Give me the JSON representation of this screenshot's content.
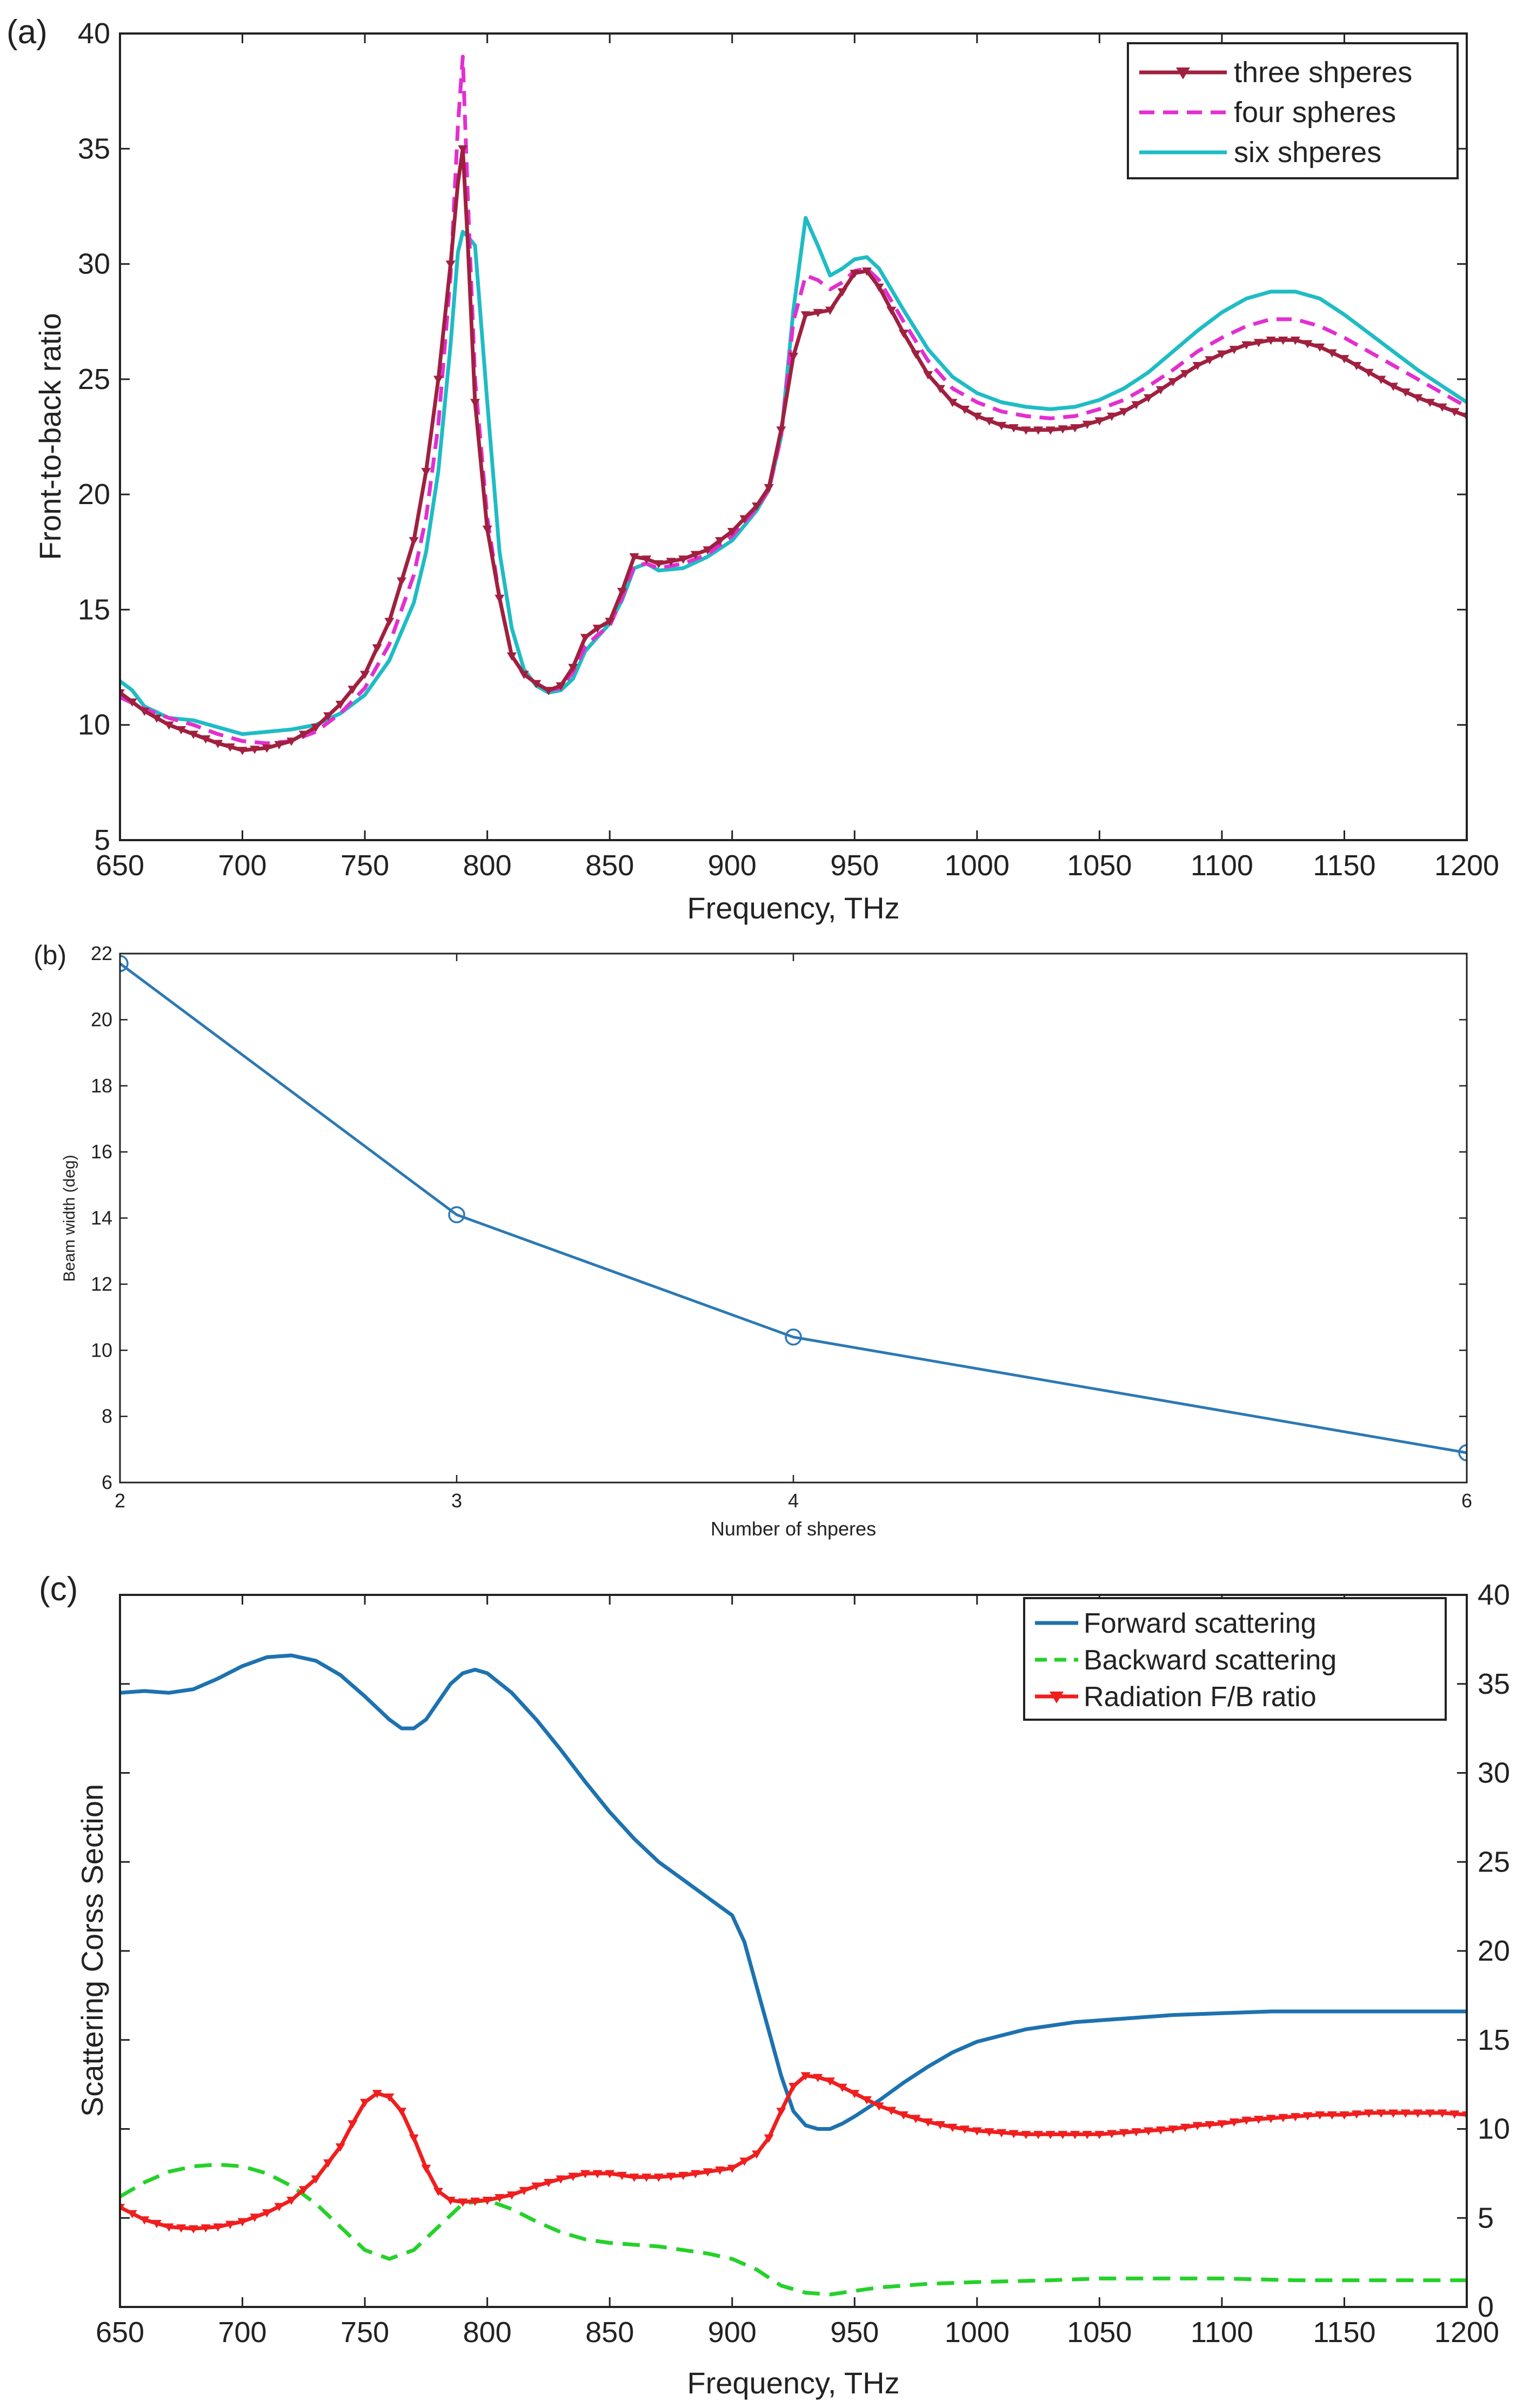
{
  "colors": {
    "three": "#a0203f",
    "four": "#e22fd0",
    "six": "#1fbcc4",
    "forward": "#1d72b0",
    "backward": "#25d12a",
    "ratio": "#f01e1e",
    "beam": "#2c79b4"
  },
  "chart_data": [
    {
      "panel": "(a)",
      "type": "line",
      "title": "",
      "xlabel": "Frequency, THz",
      "ylabel": "Front-to-back ratio",
      "xlim": [
        650,
        1200
      ],
      "ylim": [
        5,
        40
      ],
      "xticks": [
        650,
        700,
        750,
        800,
        850,
        900,
        950,
        1000,
        1050,
        1100,
        1150,
        1200
      ],
      "yticks": [
        5,
        10,
        15,
        20,
        25,
        30,
        35,
        40
      ],
      "legend_position": "top-right",
      "series": [
        {
          "name": "three shperes",
          "style": "solid-triangle-markers",
          "x": [
            650,
            660,
            670,
            680,
            690,
            700,
            710,
            720,
            730,
            740,
            750,
            760,
            770,
            775,
            780,
            785,
            788,
            790,
            792,
            795,
            800,
            805,
            810,
            815,
            820,
            825,
            830,
            835,
            840,
            845,
            850,
            855,
            860,
            865,
            870,
            880,
            890,
            900,
            910,
            915,
            920,
            925,
            930,
            935,
            940,
            945,
            950,
            955,
            960,
            970,
            980,
            990,
            1000,
            1010,
            1020,
            1030,
            1040,
            1050,
            1060,
            1070,
            1080,
            1090,
            1100,
            1110,
            1120,
            1130,
            1140,
            1150,
            1160,
            1170,
            1180,
            1190,
            1200
          ],
          "y": [
            11.4,
            10.6,
            10.0,
            9.6,
            9.2,
            8.9,
            9.0,
            9.3,
            9.9,
            10.9,
            12.2,
            14.5,
            18.0,
            21.0,
            25.0,
            30.0,
            33.5,
            35.0,
            31.0,
            24.0,
            18.5,
            15.5,
            13.0,
            12.2,
            11.8,
            11.5,
            11.7,
            12.5,
            13.8,
            14.2,
            14.5,
            15.8,
            17.3,
            17.2,
            17.0,
            17.2,
            17.6,
            18.4,
            19.5,
            20.3,
            22.8,
            26.0,
            27.8,
            27.9,
            28.0,
            28.8,
            29.6,
            29.7,
            29.0,
            27.0,
            25.2,
            24.0,
            23.4,
            23.0,
            22.8,
            22.8,
            22.9,
            23.2,
            23.6,
            24.2,
            24.9,
            25.6,
            26.1,
            26.5,
            26.7,
            26.7,
            26.4,
            25.9,
            25.3,
            24.7,
            24.2,
            23.8,
            23.4
          ]
        },
        {
          "name": "four spheres",
          "style": "dashed",
          "x": [
            650,
            660,
            670,
            680,
            690,
            700,
            710,
            720,
            730,
            740,
            750,
            760,
            770,
            775,
            780,
            785,
            788,
            790,
            792,
            795,
            800,
            805,
            810,
            815,
            820,
            825,
            830,
            835,
            840,
            845,
            850,
            855,
            860,
            865,
            870,
            880,
            890,
            900,
            910,
            915,
            920,
            925,
            930,
            935,
            940,
            945,
            950,
            955,
            960,
            970,
            980,
            990,
            1000,
            1010,
            1020,
            1030,
            1040,
            1050,
            1060,
            1070,
            1080,
            1090,
            1100,
            1110,
            1120,
            1130,
            1140,
            1150,
            1160,
            1170,
            1180,
            1190,
            1200
          ],
          "y": [
            11.2,
            10.7,
            10.3,
            10.0,
            9.6,
            9.3,
            9.2,
            9.3,
            9.7,
            10.5,
            11.6,
            13.5,
            16.5,
            19.0,
            23.0,
            29.5,
            36.0,
            39.0,
            33.0,
            25.0,
            19.0,
            15.5,
            13.0,
            12.2,
            11.8,
            11.5,
            11.6,
            12.3,
            13.4,
            13.9,
            14.3,
            15.5,
            16.9,
            17.0,
            16.8,
            17.0,
            17.4,
            18.2,
            19.4,
            20.2,
            22.5,
            27.5,
            29.5,
            29.3,
            28.9,
            29.2,
            29.7,
            29.8,
            29.3,
            27.5,
            25.8,
            24.6,
            24.0,
            23.6,
            23.4,
            23.3,
            23.4,
            23.7,
            24.1,
            24.7,
            25.4,
            26.2,
            26.8,
            27.3,
            27.6,
            27.6,
            27.3,
            26.8,
            26.2,
            25.6,
            25.0,
            24.4,
            23.8
          ]
        },
        {
          "name": "six shperes",
          "style": "solid",
          "x": [
            650,
            655,
            660,
            670,
            680,
            690,
            700,
            710,
            720,
            730,
            740,
            750,
            760,
            770,
            775,
            780,
            785,
            788,
            790,
            792,
            795,
            800,
            805,
            810,
            815,
            820,
            825,
            830,
            835,
            840,
            845,
            850,
            855,
            860,
            865,
            870,
            880,
            890,
            900,
            910,
            915,
            920,
            925,
            930,
            935,
            940,
            945,
            950,
            955,
            960,
            970,
            980,
            990,
            1000,
            1010,
            1020,
            1030,
            1040,
            1050,
            1060,
            1070,
            1080,
            1090,
            1100,
            1110,
            1120,
            1130,
            1140,
            1150,
            1160,
            1170,
            1180,
            1190,
            1200
          ],
          "y": [
            11.9,
            11.5,
            10.8,
            10.3,
            10.2,
            9.9,
            9.6,
            9.7,
            9.8,
            10.0,
            10.5,
            11.3,
            12.8,
            15.3,
            17.5,
            21.0,
            26.5,
            30.5,
            31.4,
            31.2,
            30.8,
            24.0,
            17.5,
            14.2,
            12.4,
            11.7,
            11.4,
            11.5,
            12.0,
            13.2,
            13.8,
            14.4,
            15.4,
            16.8,
            17.0,
            16.7,
            16.8,
            17.3,
            18.0,
            19.3,
            20.2,
            22.5,
            28.0,
            32.0,
            30.8,
            29.5,
            29.8,
            30.2,
            30.3,
            29.8,
            28.0,
            26.3,
            25.1,
            24.4,
            24.0,
            23.8,
            23.7,
            23.8,
            24.1,
            24.6,
            25.3,
            26.2,
            27.1,
            27.9,
            28.5,
            28.8,
            28.8,
            28.5,
            27.8,
            27.0,
            26.2,
            25.4,
            24.7,
            24.0
          ]
        }
      ]
    },
    {
      "panel": "(b)",
      "type": "line",
      "title": "",
      "xlabel": "Number of shperes",
      "ylabel": "Beam width (deg)",
      "xlim": [
        2,
        6
      ],
      "ylim": [
        6,
        22
      ],
      "xticks": [
        2,
        3,
        4,
        6
      ],
      "yticks": [
        6,
        8,
        10,
        12,
        14,
        16,
        18,
        20,
        22
      ],
      "series": [
        {
          "name": "beam width",
          "style": "solid-circle-markers",
          "x": [
            2,
            3,
            4,
            6
          ],
          "y": [
            21.7,
            14.1,
            10.4,
            6.9
          ]
        }
      ]
    },
    {
      "panel": "(c)",
      "type": "line",
      "title": "",
      "xlabel": "Frequency, THz",
      "ylabel": "Scattering Corss Section",
      "xlim": [
        650,
        1200
      ],
      "y2lim": [
        0,
        40
      ],
      "xticks": [
        650,
        700,
        750,
        800,
        850,
        900,
        950,
        1000,
        1050,
        1100,
        1150,
        1200
      ],
      "y2ticks": [
        0,
        5,
        10,
        15,
        20,
        25,
        30,
        35,
        40
      ],
      "legend_position": "top-right",
      "series": [
        {
          "name": "Forward scattering",
          "style": "solid",
          "x": [
            650,
            660,
            670,
            680,
            690,
            700,
            710,
            720,
            730,
            740,
            750,
            760,
            765,
            770,
            775,
            780,
            785,
            790,
            795,
            800,
            810,
            820,
            830,
            840,
            850,
            860,
            870,
            880,
            890,
            900,
            905,
            910,
            915,
            920,
            925,
            930,
            935,
            940,
            945,
            950,
            960,
            970,
            980,
            990,
            1000,
            1020,
            1040,
            1060,
            1080,
            1100,
            1120,
            1140,
            1160,
            1180,
            1200
          ],
          "y": [
            34.5,
            34.6,
            34.5,
            34.7,
            35.3,
            36.0,
            36.5,
            36.6,
            36.3,
            35.5,
            34.3,
            33.0,
            32.5,
            32.5,
            33.0,
            34.0,
            35.0,
            35.6,
            35.8,
            35.6,
            34.5,
            33.0,
            31.3,
            29.5,
            27.8,
            26.3,
            25.0,
            24.0,
            23.0,
            22.0,
            20.5,
            18.0,
            15.5,
            13.0,
            11.0,
            10.2,
            10.0,
            10.0,
            10.3,
            10.7,
            11.6,
            12.6,
            13.5,
            14.3,
            14.9,
            15.6,
            16.0,
            16.2,
            16.4,
            16.5,
            16.6,
            16.6,
            16.6,
            16.6,
            16.6
          ]
        },
        {
          "name": "Backward scattering",
          "style": "dashed",
          "x": [
            650,
            660,
            670,
            680,
            690,
            700,
            710,
            720,
            730,
            740,
            750,
            760,
            770,
            780,
            790,
            800,
            810,
            820,
            830,
            840,
            850,
            860,
            870,
            880,
            890,
            900,
            910,
            920,
            930,
            940,
            950,
            960,
            980,
            1000,
            1030,
            1050,
            1080,
            1100,
            1130,
            1160,
            1200
          ],
          "y": [
            6.2,
            7.0,
            7.6,
            7.9,
            8.0,
            7.9,
            7.5,
            6.8,
            5.8,
            4.5,
            3.2,
            2.7,
            3.2,
            4.5,
            5.8,
            6.0,
            5.5,
            4.8,
            4.2,
            3.8,
            3.6,
            3.5,
            3.4,
            3.2,
            3.0,
            2.7,
            2.1,
            1.2,
            0.8,
            0.7,
            0.9,
            1.1,
            1.3,
            1.4,
            1.5,
            1.6,
            1.6,
            1.6,
            1.5,
            1.5,
            1.5
          ]
        },
        {
          "name": "Radiation F/B ratio",
          "style": "solid-triangle-markers",
          "x": [
            650,
            660,
            670,
            680,
            690,
            700,
            710,
            720,
            730,
            740,
            745,
            750,
            755,
            760,
            765,
            770,
            775,
            780,
            785,
            790,
            800,
            810,
            820,
            830,
            840,
            850,
            860,
            870,
            880,
            890,
            900,
            910,
            915,
            920,
            925,
            930,
            935,
            940,
            950,
            960,
            970,
            980,
            990,
            1000,
            1010,
            1020,
            1030,
            1040,
            1050,
            1060,
            1070,
            1080,
            1090,
            1100,
            1110,
            1120,
            1130,
            1140,
            1150,
            1160,
            1170,
            1180,
            1190,
            1200
          ],
          "y": [
            5.6,
            4.9,
            4.5,
            4.4,
            4.5,
            4.8,
            5.3,
            6.0,
            7.2,
            9.0,
            10.3,
            11.5,
            12.0,
            11.8,
            11.0,
            9.5,
            7.8,
            6.5,
            6.0,
            5.9,
            6.0,
            6.3,
            6.8,
            7.2,
            7.5,
            7.5,
            7.3,
            7.3,
            7.4,
            7.6,
            7.8,
            8.6,
            9.5,
            11.0,
            12.4,
            13.0,
            12.9,
            12.7,
            12.0,
            11.3,
            10.8,
            10.4,
            10.1,
            9.9,
            9.8,
            9.7,
            9.7,
            9.7,
            9.7,
            9.8,
            9.9,
            10.0,
            10.2,
            10.3,
            10.5,
            10.6,
            10.7,
            10.8,
            10.8,
            10.9,
            10.9,
            10.9,
            10.9,
            10.8
          ]
        }
      ]
    }
  ]
}
